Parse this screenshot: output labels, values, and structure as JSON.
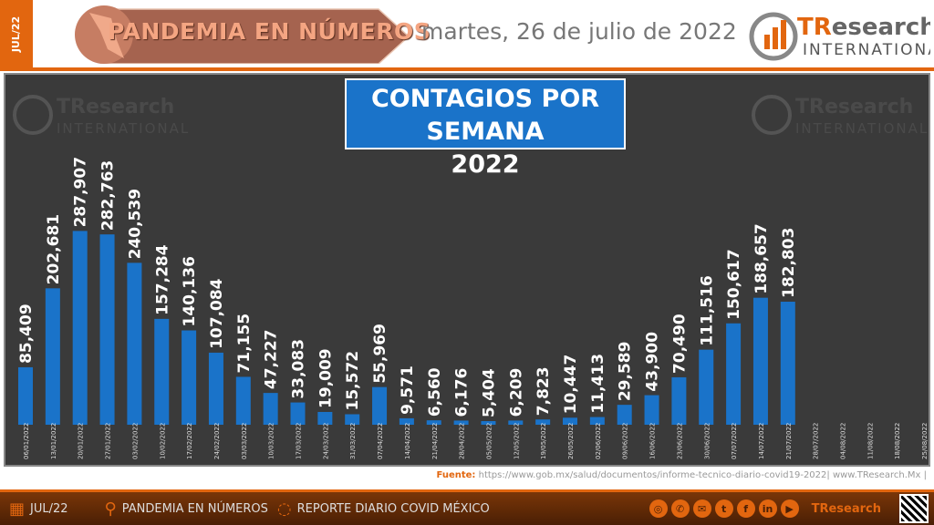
{
  "header": {
    "side_tab": "JUL/22",
    "banner_title": "PANDEMIA EN NÚMEROS",
    "date": "martes, 26 de julio de 2022",
    "logo_main": "TResearch",
    "logo_sub": "INTERNATIONAL"
  },
  "chart_data": {
    "type": "bar",
    "title": "CONTAGIOS POR SEMANA",
    "subtitle": "2022",
    "categories": [
      "06/01/2022",
      "13/01/2022",
      "20/01/2022",
      "27/01/2022",
      "03/02/2022",
      "10/02/2022",
      "17/02/2022",
      "24/02/2022",
      "03/03/2022",
      "10/03/2022",
      "17/03/2022",
      "24/03/2022",
      "31/03/2022",
      "07/04/2022",
      "14/04/2022",
      "21/04/2022",
      "28/04/2022",
      "05/05/2022",
      "12/05/2022",
      "19/05/2022",
      "26/05/2022",
      "02/06/2022",
      "09/06/2022",
      "16/06/2022",
      "23/06/2022",
      "30/06/2022",
      "07/07/2022",
      "14/07/2022",
      "21/07/2022",
      "28/07/2022",
      "04/08/2022",
      "11/08/2022",
      "18/08/2022",
      "25/08/2022"
    ],
    "values": [
      85409,
      202681,
      287907,
      282763,
      240539,
      157284,
      140136,
      107084,
      71155,
      47227,
      33083,
      19009,
      15572,
      55969,
      9571,
      6560,
      6176,
      5404,
      6209,
      7823,
      10447,
      11413,
      29589,
      43900,
      70490,
      111516,
      150617,
      188657,
      182803,
      null,
      null,
      null,
      null,
      null
    ],
    "labels": [
      "85,409",
      "202,681",
      "287,907",
      "282,763",
      "240,539",
      "157,284",
      "140,136",
      "107,084",
      "71,155",
      "47,227",
      "33,083",
      "19,009",
      "15,572",
      "55,969",
      "9,571",
      "6,560",
      "6,176",
      "5,404",
      "6,209",
      "7,823",
      "10,447",
      "11,413",
      "29,589",
      "43,900",
      "70,490",
      "111,516",
      "150,617",
      "188,657",
      "182,803"
    ],
    "ylim": [
      0,
      520000
    ],
    "grid": false,
    "colors": {
      "bar": "#1a73c9",
      "background": "#3a3a3a"
    }
  },
  "source": {
    "label": "Fuente:",
    "text": "https://www.gob.mx/salud/documentos/informe-tecnico-diario-covid19-2022| www.TResearch.Mx |"
  },
  "footer": {
    "date": "JUL/22",
    "section": "PANDEMIA EN NÚMEROS",
    "report": "REPORTE DIARIO COVID MÉXICO",
    "social": [
      "globe-icon",
      "whatsapp-icon",
      "mail-icon",
      "twitter-icon",
      "facebook-icon",
      "linkedin-icon",
      "youtube-icon"
    ]
  }
}
